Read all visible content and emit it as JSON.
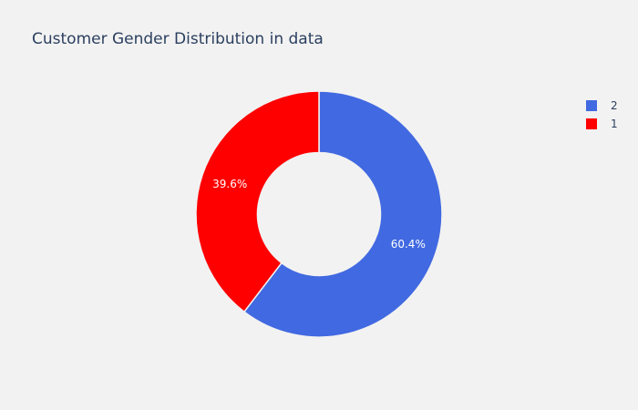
{
  "chart_data": {
    "type": "pie",
    "title": "Customer Gender Distribution in data",
    "hole": 0.5,
    "labels": [
      "2",
      "1"
    ],
    "values": [
      60.4,
      39.6
    ],
    "percent_labels": [
      "60.4%",
      "39.6%"
    ],
    "colors": [
      "#4169e1",
      "#ff0000"
    ],
    "legend_position": "top-right",
    "sort": "descending",
    "direction": "clockwise",
    "start_angle_deg": 90
  }
}
